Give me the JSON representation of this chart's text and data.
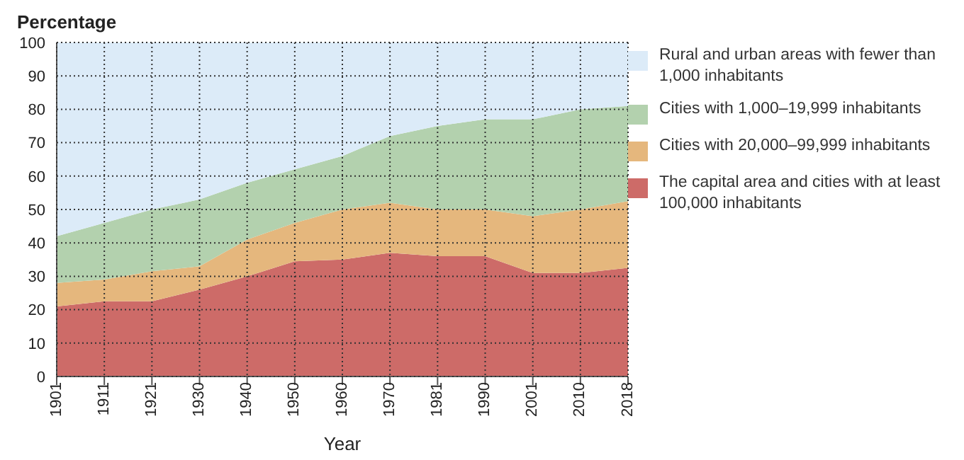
{
  "chart_data": {
    "type": "area",
    "title": "Percentage",
    "xlabel": "Year",
    "stacked": true,
    "categories": [
      "1901",
      "1911",
      "1921",
      "1930",
      "1940",
      "1950",
      "1960",
      "1970",
      "1981",
      "1990",
      "2001",
      "2010",
      "2018"
    ],
    "series": [
      {
        "name": "The capital area and cities with at least 100,000 inhabitants",
        "color": "#cd6b68",
        "values": [
          21,
          22.5,
          22.5,
          26,
          30,
          34.5,
          35,
          37,
          36,
          36,
          31,
          31,
          32.5
        ]
      },
      {
        "name": "Cities with 20,000–99,999 inhabitants",
        "color": "#e5b77d",
        "values": [
          7,
          6.5,
          9,
          7,
          11,
          11.5,
          15,
          15,
          14,
          14,
          17,
          19,
          20
        ]
      },
      {
        "name": "Cities with 1,000–19,999 inhabitants",
        "color": "#b3d1ae",
        "values": [
          14,
          17,
          18.5,
          20,
          17,
          16,
          16,
          20,
          25,
          27,
          29,
          30,
          28.5
        ]
      },
      {
        "name": "Rural and urban areas with fewer than 1,000 inhabitants",
        "color": "#dcebf8",
        "values": [
          58,
          54,
          50,
          47,
          42,
          38,
          34,
          28,
          25,
          23,
          23,
          20,
          19
        ]
      }
    ],
    "ylim": [
      0,
      100
    ],
    "yticks": [
      0,
      10,
      20,
      30,
      40,
      50,
      60,
      70,
      80,
      90,
      100
    ],
    "grid": true,
    "legend": "right"
  }
}
